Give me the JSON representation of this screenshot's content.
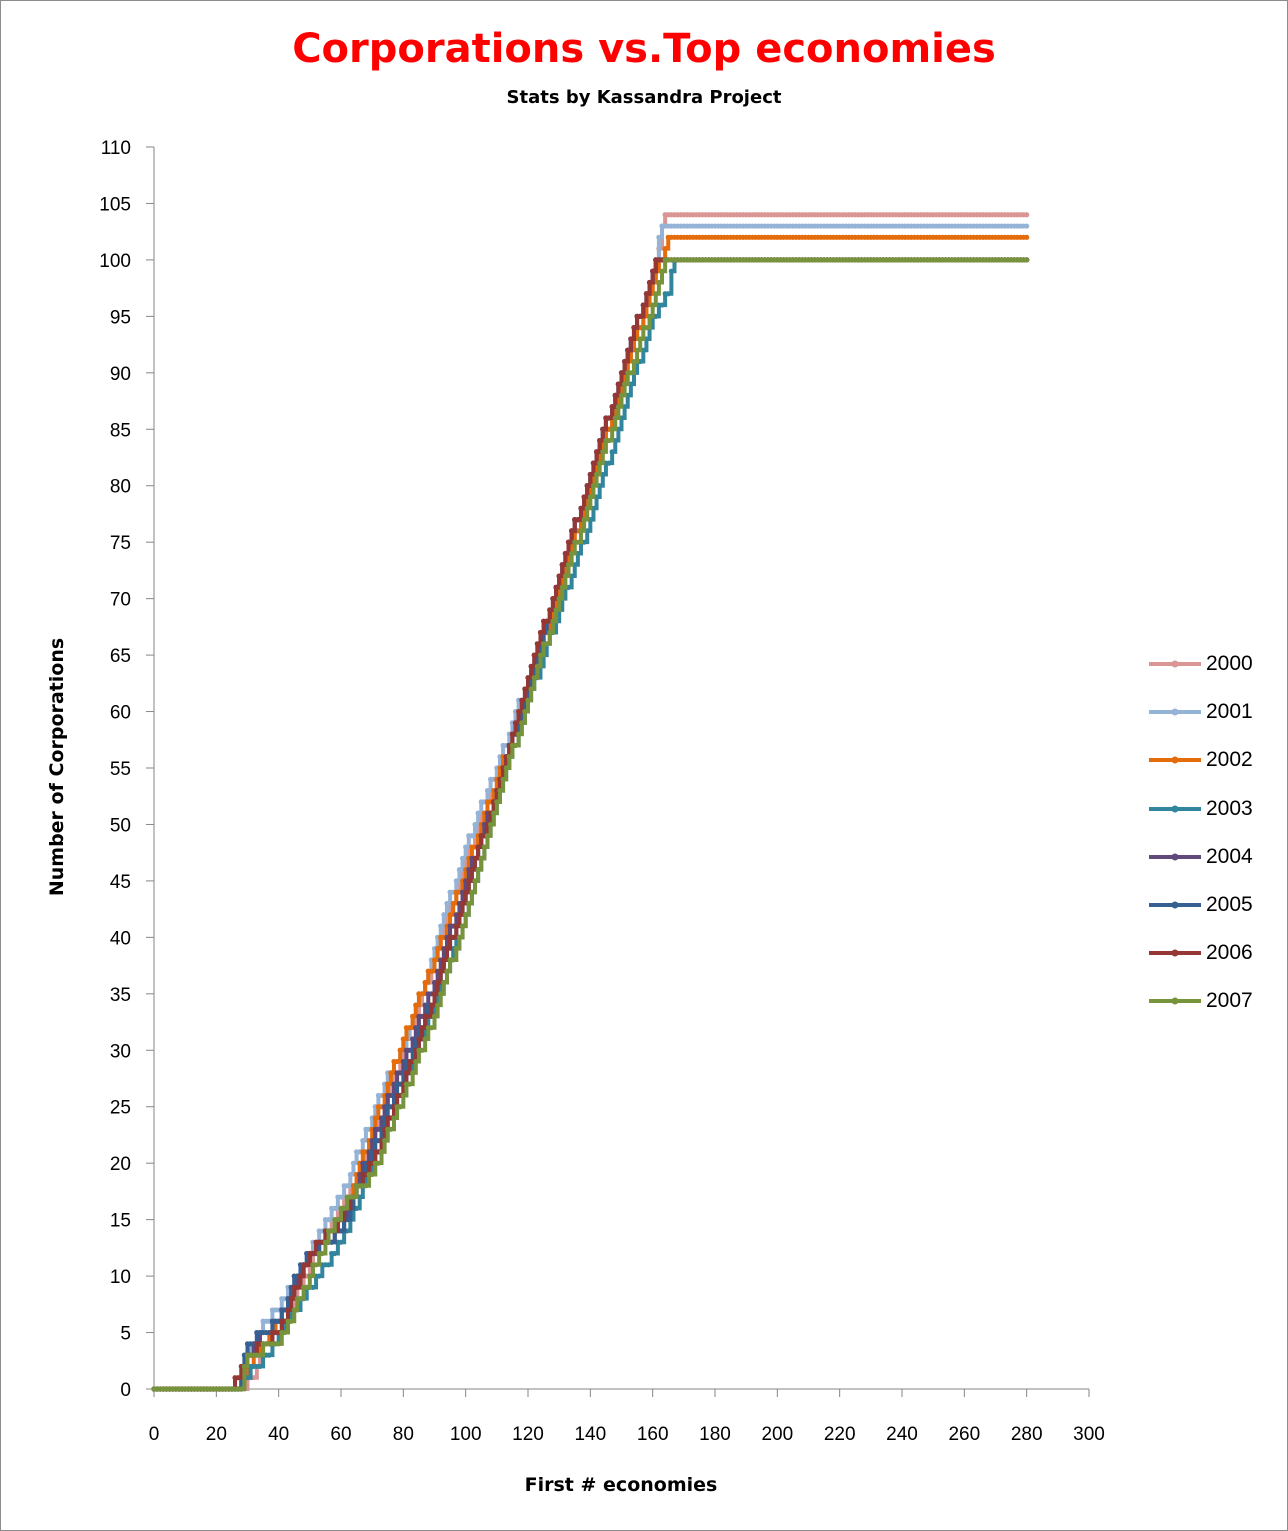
{
  "chart_data": {
    "type": "line",
    "title": "Corporations vs.Top economies",
    "subtitle": "Stats by Kassandra Project",
    "xlabel": "First # economies",
    "ylabel": "Number of Corporations",
    "xlim": [
      0,
      300
    ],
    "ylim": [
      0,
      110
    ],
    "x_ticks": [
      "0",
      "20",
      "40",
      "60",
      "80",
      "100",
      "120",
      "140",
      "160",
      "180",
      "200",
      "220",
      "240",
      "260",
      "280",
      "300"
    ],
    "y_ticks": [
      "0",
      "5",
      "10",
      "15",
      "20",
      "25",
      "30",
      "35",
      "40",
      "45",
      "50",
      "55",
      "60",
      "65",
      "70",
      "75",
      "80",
      "85",
      "90",
      "95",
      "100",
      "105",
      "110"
    ],
    "grid": false,
    "legend_position": "right",
    "series": [
      {
        "name": "2000",
        "color": "#d99694",
        "marker": "circle",
        "x": [
          0,
          28,
          32,
          35,
          40,
          50,
          60,
          70,
          80,
          90,
          100,
          110,
          120,
          130,
          140,
          150,
          160,
          164,
          280
        ],
        "y": [
          0,
          0,
          1,
          4,
          5,
          11,
          16,
          22,
          30,
          38,
          47,
          54,
          62,
          71,
          80,
          89,
          98,
          104,
          104
        ]
      },
      {
        "name": "2001",
        "color": "#95b3d7",
        "marker": "cross",
        "x": [
          0,
          28,
          30,
          35,
          40,
          50,
          60,
          70,
          75,
          80,
          90,
          100,
          110,
          120,
          130,
          140,
          150,
          160,
          163,
          280
        ],
        "y": [
          0,
          0,
          3,
          6,
          7,
          12,
          17,
          24,
          28,
          30,
          39,
          48,
          55,
          63,
          72,
          81,
          90,
          99,
          103,
          103
        ]
      },
      {
        "name": "2002",
        "color": "#e46c0a",
        "marker": "circle",
        "x": [
          0,
          28,
          30,
          35,
          40,
          50,
          60,
          70,
          80,
          90,
          100,
          110,
          120,
          130,
          140,
          150,
          160,
          165,
          280
        ],
        "y": [
          0,
          0,
          2,
          4,
          6,
          12,
          15,
          23,
          31,
          38,
          46,
          54,
          62,
          71,
          80,
          89,
          98,
          102,
          102
        ]
      },
      {
        "name": "2003",
        "color": "#31859c",
        "marker": "square",
        "x": [
          0,
          28,
          32,
          37,
          40,
          50,
          58,
          62,
          70,
          80,
          90,
          100,
          110,
          120,
          130,
          140,
          150,
          160,
          165,
          167,
          280
        ],
        "y": [
          0,
          0,
          2,
          3,
          5,
          9,
          12,
          14,
          20,
          27,
          34,
          42,
          52,
          61,
          69,
          77,
          86,
          95,
          97,
          100,
          100
        ]
      },
      {
        "name": "2004",
        "color": "#604a7b",
        "marker": "x",
        "x": [
          0,
          27,
          30,
          35,
          40,
          45,
          50,
          55,
          60,
          70,
          80,
          90,
          100,
          110,
          120,
          130,
          140,
          150,
          160,
          162,
          280
        ],
        "y": [
          0,
          0,
          3,
          5,
          6,
          9,
          12,
          13,
          14,
          22,
          29,
          36,
          45,
          53,
          62,
          72,
          81,
          90,
          99,
          100,
          100
        ]
      },
      {
        "name": "2005",
        "color": "#376092",
        "marker": "diamond",
        "x": [
          0,
          27,
          30,
          35,
          40,
          47,
          55,
          60,
          70,
          80,
          90,
          100,
          110,
          120,
          130,
          140,
          150,
          160,
          162,
          280
        ],
        "y": [
          0,
          0,
          4,
          5,
          6,
          11,
          13,
          14,
          21,
          28,
          35,
          44,
          53,
          62,
          72,
          81,
          90,
          99,
          100,
          100
        ]
      },
      {
        "name": "2006",
        "color": "#953735",
        "marker": "square",
        "x": [
          0,
          24,
          27,
          30,
          35,
          40,
          50,
          60,
          70,
          80,
          90,
          100,
          110,
          120,
          130,
          140,
          150,
          160,
          162,
          280
        ],
        "y": [
          0,
          0,
          1,
          3,
          4,
          5,
          12,
          15,
          20,
          27,
          35,
          44,
          53,
          63,
          72,
          81,
          90,
          99,
          100,
          100
        ]
      },
      {
        "name": "2007",
        "color": "#77933c",
        "marker": "triangle",
        "x": [
          0,
          28,
          30,
          40,
          50,
          60,
          70,
          80,
          90,
          100,
          110,
          120,
          130,
          140,
          150,
          160,
          164,
          280
        ],
        "y": [
          0,
          0,
          3,
          4,
          10,
          16,
          19,
          26,
          33,
          42,
          52,
          61,
          70,
          79,
          88,
          96,
          100,
          100
        ]
      }
    ]
  }
}
